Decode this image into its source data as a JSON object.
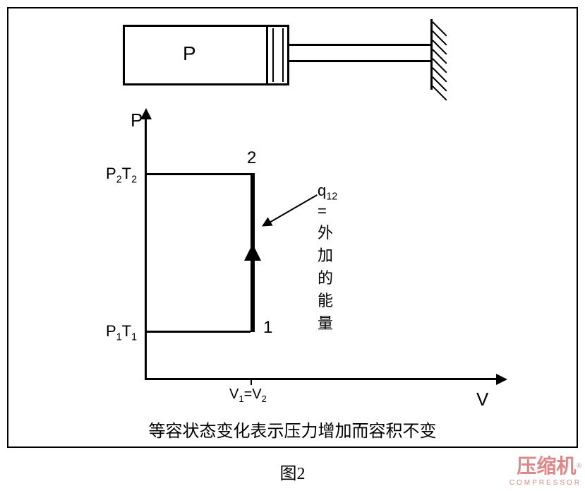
{
  "border": {
    "stroke": "#000000",
    "stroke_width": 2
  },
  "piston": {
    "label": "P",
    "label_fontsize": 28,
    "stroke": "#000000",
    "stroke_width": 3,
    "hatch_count": 8,
    "hatch_angle_deg": 45
  },
  "chart": {
    "type": "line",
    "axes": {
      "y_label": "P",
      "x_label": "V",
      "label_fontsize": 26,
      "axis_color": "#000000",
      "axis_width": 3
    },
    "points": {
      "1": {
        "label": "1",
        "V": "V1",
        "P": "P1",
        "T": "T1"
      },
      "2": {
        "label": "2",
        "V": "V2",
        "P": "P2",
        "T": "T2"
      }
    },
    "process": {
      "from": "1",
      "to": "2",
      "direction": "up",
      "line_width": 6,
      "line_color": "#000000"
    },
    "y_ticks": [
      {
        "key": "P2T2",
        "text_html": "P<sub>2</sub>T<sub>2</sub>"
      },
      {
        "key": "P1T1",
        "text_html": "P<sub>1</sub>T<sub>1</sub>"
      }
    ],
    "x_tick": {
      "key": "V1V2",
      "text_html": "V<sub>1</sub>=V<sub>2</sub>"
    },
    "annotation": {
      "text_html": "q<sub>12</sub> = 外加的能量",
      "fontsize": 22,
      "arrow_color": "#000000"
    }
  },
  "caption": {
    "text": "等容状态变化表示压力增加而容积不变",
    "fontsize": 24
  },
  "figure_label": {
    "text": "图2",
    "fontsize": 24
  },
  "watermark": {
    "cn": "压缩机",
    "en": "COMPRESSOR",
    "reg": "®",
    "color": "#dd8888"
  }
}
